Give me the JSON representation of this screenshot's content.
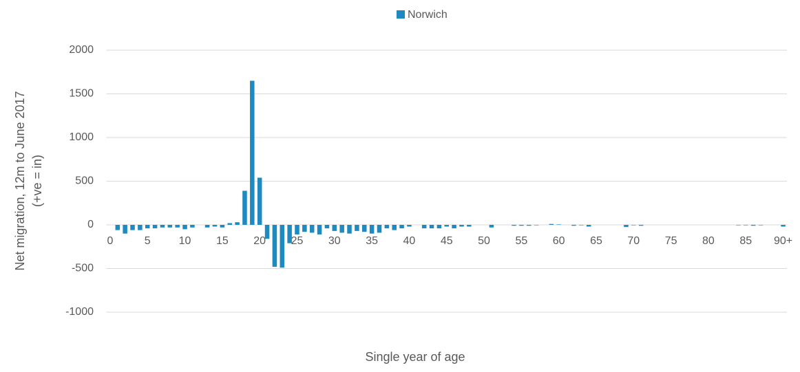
{
  "chart_data": {
    "type": "bar",
    "xlabel": "Single year of age",
    "ylabel": [
      "Net migration, 12m to June 2017",
      "(+ve = in)"
    ],
    "categories": [
      "0",
      null,
      null,
      null,
      null,
      "5",
      null,
      null,
      null,
      null,
      "10",
      null,
      null,
      null,
      null,
      "15",
      null,
      null,
      null,
      null,
      "20",
      null,
      null,
      null,
      null,
      "25",
      null,
      null,
      null,
      null,
      "30",
      null,
      null,
      null,
      null,
      "35",
      null,
      null,
      null,
      null,
      "40",
      null,
      null,
      null,
      null,
      "45",
      null,
      null,
      null,
      null,
      "50",
      null,
      null,
      null,
      null,
      "55",
      null,
      null,
      null,
      null,
      "60",
      null,
      null,
      null,
      null,
      "65",
      null,
      null,
      null,
      null,
      "70",
      null,
      null,
      null,
      null,
      "75",
      null,
      null,
      null,
      null,
      "80",
      null,
      null,
      null,
      null,
      "85",
      null,
      null,
      null,
      null,
      "90+"
    ],
    "series": [
      {
        "name": "Norwich",
        "color": "#1f8ac0",
        "values": [
          0,
          -60,
          -100,
          -60,
          -60,
          -40,
          -40,
          -30,
          -30,
          -30,
          -50,
          -30,
          0,
          -30,
          -20,
          -30,
          20,
          30,
          390,
          1650,
          540,
          -160,
          -480,
          -490,
          -210,
          -110,
          -80,
          -90,
          -110,
          -40,
          -70,
          -90,
          -100,
          -70,
          -80,
          -100,
          -90,
          -40,
          -60,
          -40,
          -20,
          0,
          -40,
          -40,
          -40,
          -20,
          -40,
          -20,
          -20,
          0,
          0,
          -30,
          0,
          0,
          -10,
          -10,
          -10,
          -5,
          0,
          10,
          5,
          0,
          -10,
          -5,
          -20,
          0,
          0,
          0,
          0,
          -25,
          -5,
          -10,
          0,
          0,
          0,
          0,
          0,
          0,
          0,
          0,
          0,
          0,
          0,
          0,
          -5,
          -5,
          -10,
          -5,
          0,
          0,
          -20
        ]
      }
    ],
    "ylim": [
      -1000,
      2000
    ],
    "yticks": [
      -1000,
      -500,
      0,
      500,
      1000,
      1500,
      2000
    ],
    "grid": true,
    "legend": "top"
  }
}
